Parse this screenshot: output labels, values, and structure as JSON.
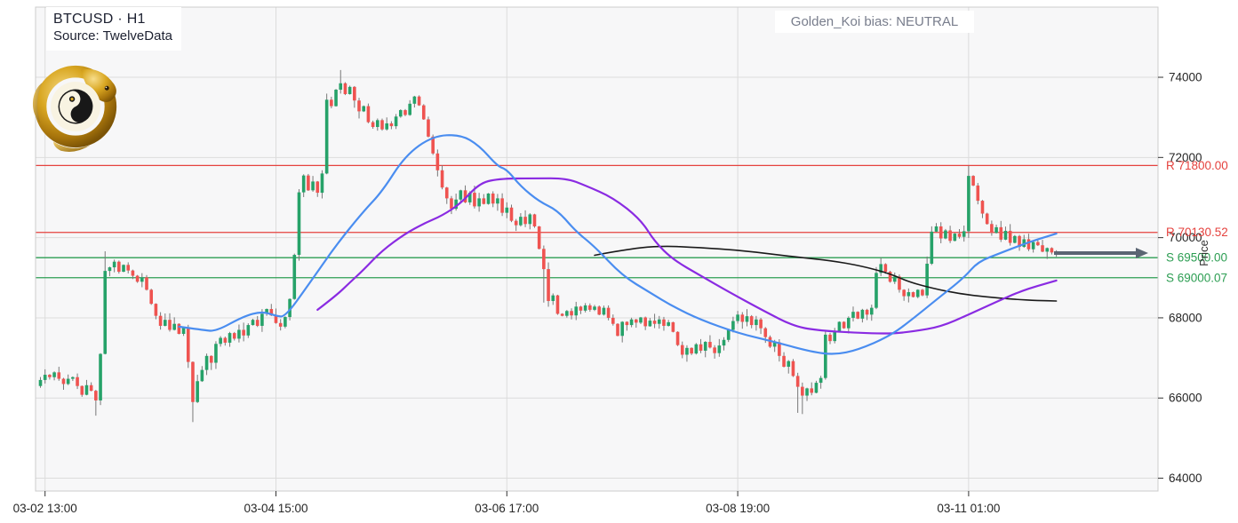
{
  "header": {
    "symbol_line": "BTCUSD · H1",
    "source_line": "Source: TwelveData",
    "bias_text": "Golden_Koi bias: NEUTRAL"
  },
  "axes": {
    "y_label": "Price",
    "y_ticks": [
      64000,
      66000,
      68000,
      70000,
      72000,
      74000
    ],
    "x_ticks": [
      {
        "bar": 1,
        "label": "03-02 13:00"
      },
      {
        "bar": 51,
        "label": "03-04 15:00"
      },
      {
        "bar": 101,
        "label": "03-06 17:00"
      },
      {
        "bar": 151,
        "label": "03-08 19:00"
      },
      {
        "bar": 201,
        "label": "03-11 01:00"
      }
    ]
  },
  "chart_data": {
    "type": "candlestick",
    "symbol": "BTCUSD",
    "interval": "H1",
    "title": "BTCUSD · H1",
    "ylabel": "Price",
    "ylim": [
      63680,
      75750
    ],
    "grid": true,
    "first_open": 66300,
    "closes": [
      66450,
      66580,
      66520,
      66640,
      66480,
      66350,
      66480,
      66520,
      66300,
      66080,
      66320,
      66180,
      65940,
      67100,
      69170,
      69260,
      69400,
      69150,
      69320,
      69180,
      69050,
      68900,
      69010,
      68700,
      68350,
      68050,
      67800,
      67950,
      67700,
      67850,
      67600,
      67750,
      66900,
      65900,
      66420,
      66700,
      67050,
      66880,
      67350,
      67500,
      67380,
      67620,
      67480,
      67700,
      67560,
      67820,
      67950,
      67800,
      68100,
      68220,
      68060,
      67870,
      67780,
      68020,
      68470,
      69570,
      71130,
      71550,
      71180,
      71400,
      71120,
      71600,
      73440,
      73280,
      73690,
      73850,
      73580,
      73760,
      73420,
      73150,
      73280,
      72880,
      72760,
      72930,
      72700,
      72850,
      72780,
      73020,
      73180,
      73060,
      73340,
      73520,
      73300,
      72950,
      72520,
      72100,
      71680,
      71250,
      70980,
      70720,
      70950,
      71180,
      70880,
      71120,
      70780,
      70980,
      70840,
      71100,
      70850,
      70980,
      70620,
      70750,
      70420,
      70310,
      70520,
      70340,
      70580,
      70280,
      69720,
      69215,
      68420,
      68560,
      68100,
      68050,
      68170,
      68060,
      68280,
      68180,
      68310,
      68200,
      68280,
      68080,
      68250,
      68000,
      67850,
      67550,
      67900,
      67820,
      67960,
      67880,
      68010,
      67790,
      67930,
      67850,
      67960,
      67800,
      67890,
      67650,
      67320,
      67080,
      67250,
      67110,
      67340,
      67180,
      67400,
      67260,
      67120,
      67310,
      67450,
      67700,
      67920,
      68080,
      67900,
      68040,
      67820,
      67960,
      67740,
      67520,
      67280,
      67390,
      67050,
      66780,
      66920,
      66550,
      66280,
      66060,
      66240,
      66130,
      66380,
      66500,
      67580,
      67420,
      67650,
      67900,
      67740,
      68000,
      68150,
      67980,
      68200,
      68080,
      68250,
      69120,
      69340,
      69150,
      68900,
      69030,
      68700,
      68540,
      68640,
      68520,
      68700,
      68560,
      69350,
      70150,
      70280,
      69980,
      70180,
      69920,
      70100,
      70020,
      70160,
      71540,
      71300,
      70920,
      70600,
      70340,
      70120,
      70260,
      69950,
      70170,
      69870,
      70040,
      69770,
      69960,
      69710,
      69890,
      69810,
      69650,
      69740,
      69630,
      69600
    ],
    "wick_overrides": {
      "12": {
        "low": 65560
      },
      "14": {
        "high": 69660
      },
      "33": {
        "low": 65400
      },
      "65": {
        "high": 74180
      },
      "109": {
        "low": 68380
      },
      "164": {
        "low": 65630
      },
      "165": {
        "low": 65600
      },
      "182": {
        "high": 69500
      },
      "201": {
        "high": 71790
      }
    },
    "levels": [
      {
        "kind": "resistance",
        "label": "R 71800.00",
        "price": 71800,
        "color": "#e5423e"
      },
      {
        "kind": "resistance",
        "label": "R 70130.52",
        "price": 70130.52,
        "color": "#e5423e"
      },
      {
        "kind": "support",
        "label": "S 69500.00",
        "price": 69500,
        "color": "#2d9e53"
      },
      {
        "kind": "support",
        "label": "S 69000.07",
        "price": 69000.07,
        "color": "#2d9e53"
      }
    ],
    "moving_averages": [
      {
        "name": "ma-slow-black",
        "color": "#1a1a1a",
        "width": 1.6,
        "points": [
          [
            120,
            69560
          ],
          [
            126,
            69690
          ],
          [
            134,
            69800
          ],
          [
            143,
            69750
          ],
          [
            151,
            69690
          ],
          [
            159,
            69580
          ],
          [
            165,
            69500
          ],
          [
            171,
            69430
          ],
          [
            178,
            69290
          ],
          [
            184,
            69100
          ],
          [
            188,
            68900
          ],
          [
            193,
            68740
          ],
          [
            199,
            68600
          ],
          [
            205,
            68520
          ],
          [
            211,
            68460
          ],
          [
            216,
            68430
          ],
          [
            220,
            68420
          ]
        ]
      },
      {
        "name": "ma-medium-purple",
        "color": "#8a2be2",
        "width": 2.2,
        "points": [
          [
            60,
            68200
          ],
          [
            64,
            68550
          ],
          [
            67,
            68880
          ],
          [
            70,
            69200
          ],
          [
            74,
            69680
          ],
          [
            79,
            70100
          ],
          [
            83,
            70350
          ],
          [
            87,
            70550
          ],
          [
            91,
            70850
          ],
          [
            95,
            71350
          ],
          [
            99,
            71470
          ],
          [
            107,
            71480
          ],
          [
            114,
            71480
          ],
          [
            118,
            71300
          ],
          [
            124,
            71000
          ],
          [
            130,
            70450
          ],
          [
            133,
            69900
          ],
          [
            137,
            69450
          ],
          [
            143,
            69050
          ],
          [
            149,
            68650
          ],
          [
            157,
            68150
          ],
          [
            163,
            67800
          ],
          [
            168,
            67690
          ],
          [
            176,
            67630
          ],
          [
            184,
            67600
          ],
          [
            189,
            67660
          ],
          [
            195,
            67780
          ],
          [
            201,
            68080
          ],
          [
            207,
            68400
          ],
          [
            212,
            68650
          ],
          [
            216,
            68800
          ],
          [
            220,
            68930
          ]
        ]
      },
      {
        "name": "ma-fast-blue",
        "color": "#4a8df0",
        "width": 2.2,
        "points": [
          [
            30,
            67780
          ],
          [
            35,
            67700
          ],
          [
            38,
            67660
          ],
          [
            44,
            68040
          ],
          [
            48,
            68160
          ],
          [
            51,
            68050
          ],
          [
            53,
            68020
          ],
          [
            58,
            68820
          ],
          [
            64,
            69810
          ],
          [
            70,
            70660
          ],
          [
            74,
            71150
          ],
          [
            79,
            72050
          ],
          [
            85,
            72540
          ],
          [
            91,
            72570
          ],
          [
            95,
            72300
          ],
          [
            99,
            71780
          ],
          [
            101,
            71700
          ],
          [
            104,
            71280
          ],
          [
            108,
            70900
          ],
          [
            112,
            70680
          ],
          [
            116,
            70150
          ],
          [
            120,
            69780
          ],
          [
            126,
            69050
          ],
          [
            132,
            68630
          ],
          [
            137,
            68280
          ],
          [
            143,
            67950
          ],
          [
            151,
            67620
          ],
          [
            159,
            67400
          ],
          [
            167,
            67150
          ],
          [
            172,
            67080
          ],
          [
            177,
            67200
          ],
          [
            184,
            67550
          ],
          [
            189,
            67980
          ],
          [
            194,
            68450
          ],
          [
            200,
            69000
          ],
          [
            203,
            69400
          ],
          [
            208,
            69620
          ],
          [
            212,
            69800
          ],
          [
            216,
            69960
          ],
          [
            220,
            70100
          ]
        ]
      }
    ],
    "arrow": {
      "price": 69615,
      "x_from": 1186,
      "x_to": 1292,
      "color": "#5b6573"
    },
    "colors": {
      "up_candle": "#26a269",
      "down_candle": "#ef5350",
      "wick": "#787878",
      "grid": "#dcdcdc",
      "plot_border": "#cccccc",
      "plot_bg": "#f7f7f8",
      "tick_text": "#262626",
      "resistance": "#e5423e",
      "support": "#2d9e53"
    }
  }
}
